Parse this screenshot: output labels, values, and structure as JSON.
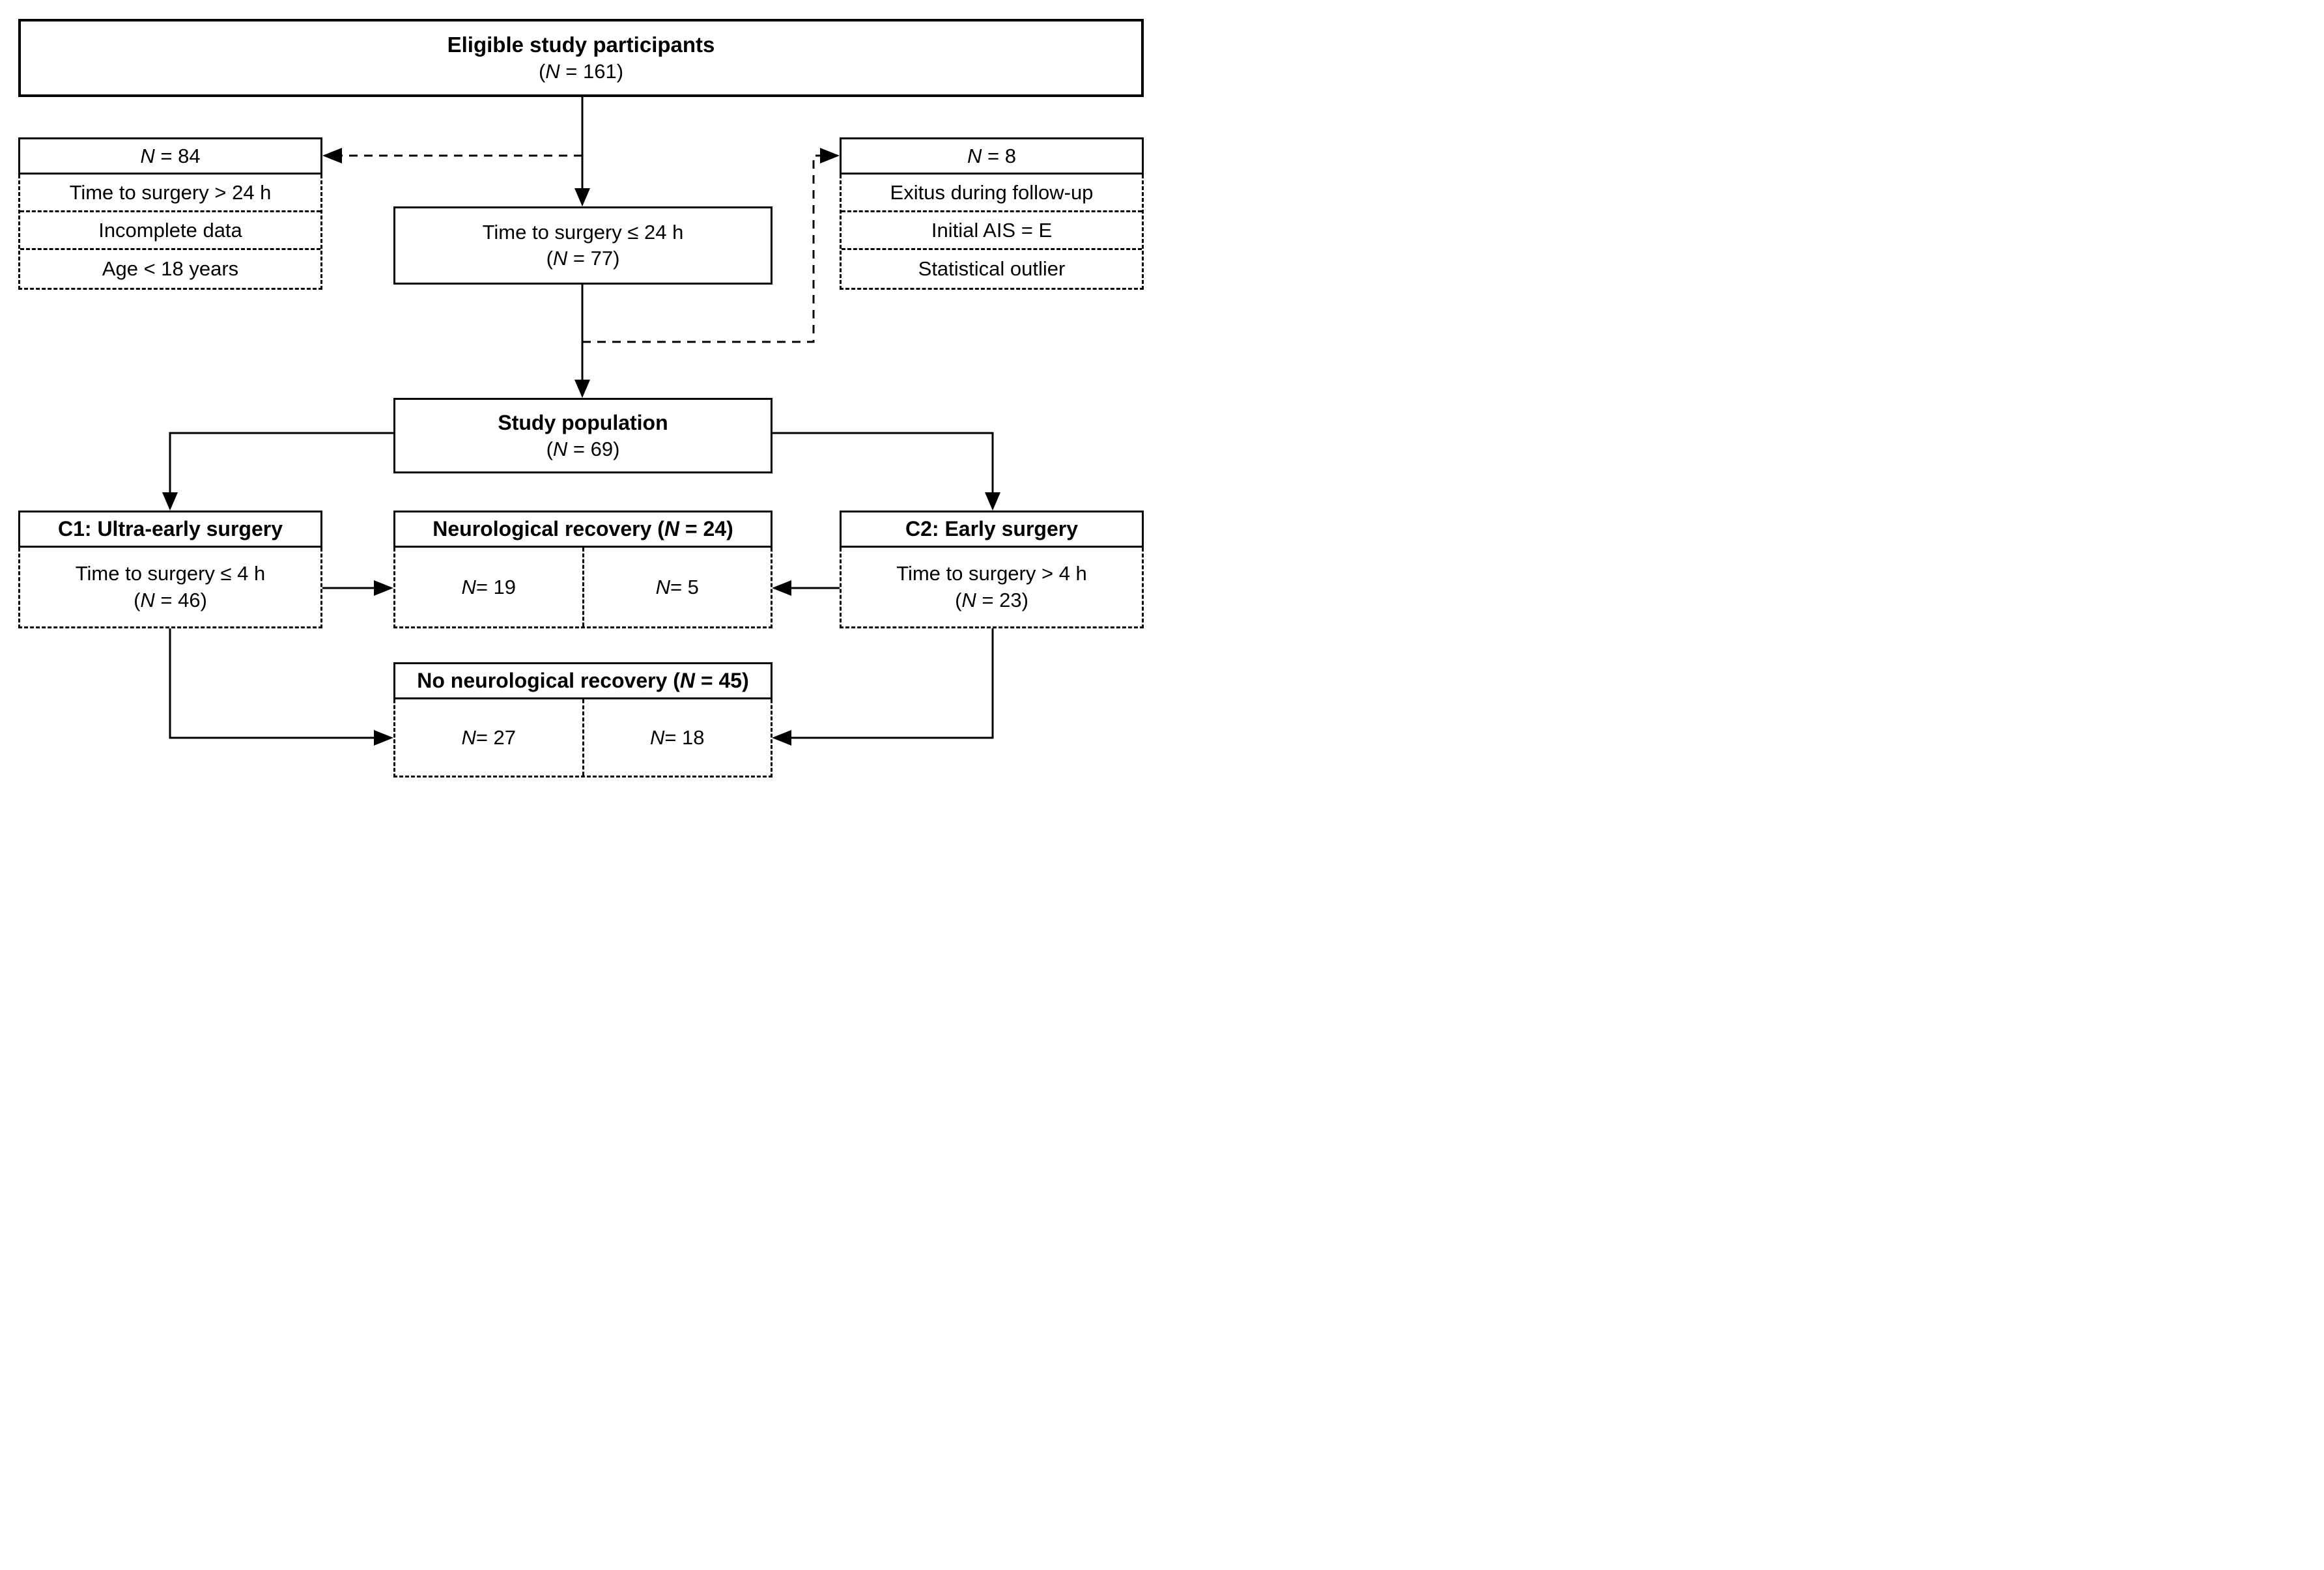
{
  "diagram": {
    "eligible": {
      "title": "Eligible study participants",
      "n": "(N = 161)"
    },
    "excluded_left": {
      "n": "N = 84",
      "reasons": [
        "Time to surgery > 24 h",
        "Incomplete data",
        "Age < 18 years"
      ]
    },
    "excluded_right": {
      "n": "N = 8",
      "reasons": [
        "Exitus during follow-up",
        "Initial AIS = E",
        "Statistical outlier"
      ]
    },
    "time24": {
      "title": "Time to surgery ≤ 24 h",
      "n": "(N = 77)"
    },
    "study": {
      "title": "Study population",
      "n": "(N = 69)"
    },
    "c1": {
      "title": "C1: Ultra-early surgery",
      "line1": "Time to surgery ≤ 4 h",
      "n": "(N = 46)"
    },
    "c2": {
      "title": "C2: Early surgery",
      "line1": "Time to surgery > 4 h",
      "n": "(N = 23)"
    },
    "recovery": {
      "title": "Neurological recovery (N = 24)",
      "left_n": "N = 19",
      "right_n": "N = 5"
    },
    "no_recovery": {
      "title": "No neurological recovery (N = 45)",
      "left_n": "N = 27",
      "right_n": "N = 18"
    }
  },
  "colors": {
    "line": "#000000",
    "background": "#ffffff"
  }
}
